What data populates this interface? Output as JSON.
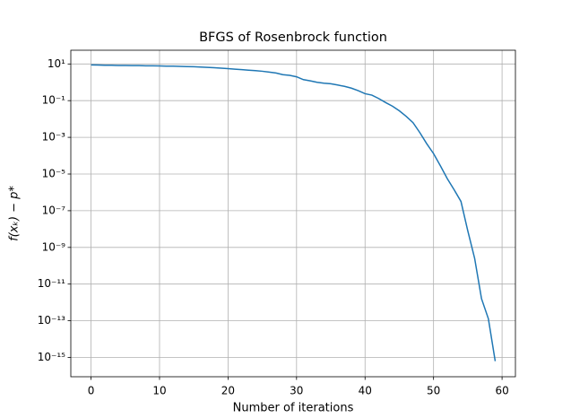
{
  "chart_data": {
    "type": "line",
    "title": "BFGS of Rosenbrock function",
    "x_label": "Number of iterations",
    "y_label": "f(xₖ) − p*",
    "x": [
      0,
      1,
      2,
      3,
      4,
      5,
      6,
      7,
      8,
      9,
      10,
      11,
      12,
      13,
      14,
      15,
      16,
      17,
      18,
      19,
      20,
      21,
      22,
      23,
      24,
      25,
      26,
      27,
      28,
      29,
      30,
      31,
      32,
      33,
      34,
      35,
      36,
      37,
      38,
      39,
      40,
      41,
      42,
      43,
      44,
      45,
      46,
      47,
      48,
      49,
      50,
      51,
      52,
      53,
      54,
      55,
      56,
      57,
      58,
      59
    ],
    "series": [
      {
        "color": "#1f77b4",
        "values": [
          8.9,
          8.7,
          8.5,
          8.5,
          8.3,
          8.3,
          8.1,
          8.1,
          7.9,
          7.9,
          7.8,
          7.6,
          7.6,
          7.4,
          7.2,
          7.1,
          6.8,
          6.5,
          6.2,
          5.9,
          5.6,
          5.2,
          4.9,
          4.6,
          4.3,
          4.0,
          3.6,
          3.2,
          2.6,
          2.4,
          2.0,
          1.4,
          1.2,
          1.0,
          0.89,
          0.83,
          0.71,
          0.6,
          0.48,
          0.35,
          0.24,
          0.2,
          0.13,
          0.079,
          0.05,
          0.028,
          0.014,
          0.0063,
          0.0018,
          0.00045,
          0.00013,
          2.8e-05,
          5.6e-06,
          1.4e-06,
          3.2e-07,
          7.9e-09,
          2.5e-10,
          1.6e-12,
          1.3e-13,
          6.3e-16
        ]
      }
    ],
    "xlim": [
      -2.95,
      61.95
    ],
    "xticks": [
      0,
      10,
      20,
      30,
      40,
      50,
      60
    ],
    "ylim": [
      8.9e-17,
      56
    ],
    "yscale": "log",
    "yticks": [
      {
        "value": 10,
        "label": "10¹"
      },
      {
        "value": 0.1,
        "label": "10⁻¹"
      },
      {
        "value": 0.001,
        "label": "10⁻³"
      },
      {
        "value": 1e-05,
        "label": "10⁻⁵"
      },
      {
        "value": 1e-07,
        "label": "10⁻⁷"
      },
      {
        "value": 1e-09,
        "label": "10⁻⁹"
      },
      {
        "value": 1e-11,
        "label": "10⁻¹¹"
      },
      {
        "value": 1e-13,
        "label": "10⁻¹³"
      },
      {
        "value": 1e-15,
        "label": "10⁻¹⁵"
      }
    ],
    "grid": true
  }
}
